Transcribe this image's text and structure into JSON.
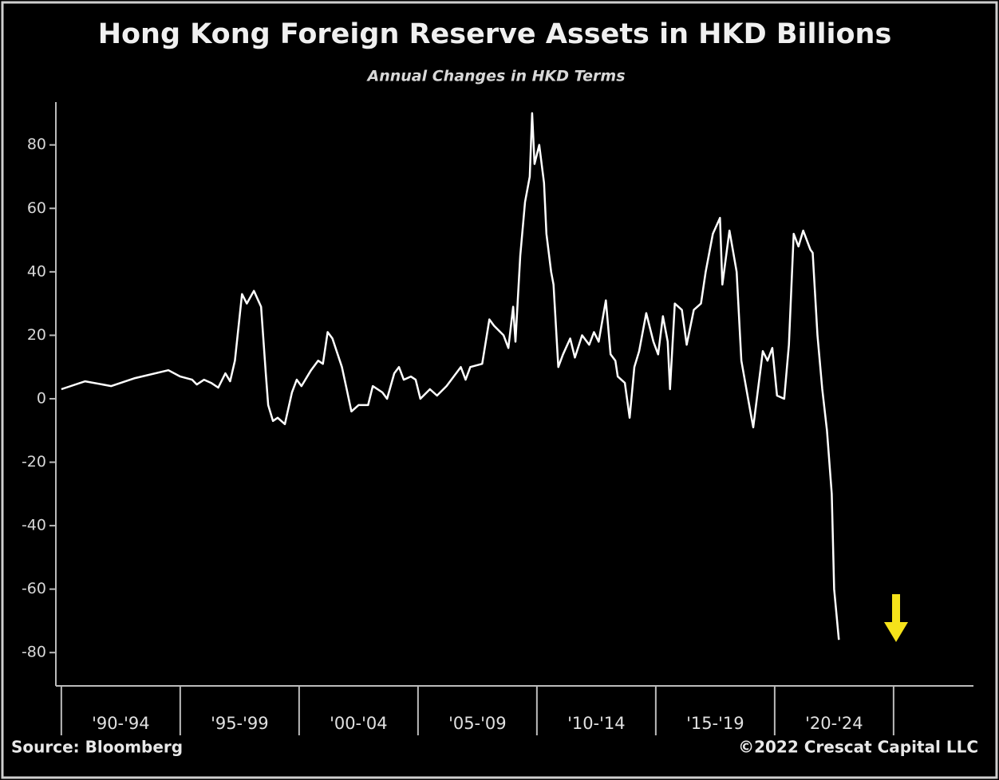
{
  "chart_data": {
    "type": "line",
    "title": "Hong Kong Foreign Reserve Assets in HKD Billions",
    "subtitle": "Annual Changes in HKD Terms",
    "source": "Source: Bloomberg",
    "credit": "©2022 Crescat Capital LLC",
    "categories": [
      "'90-'94",
      "'95-'99",
      "'00-'04",
      "'05-'09",
      "'10-'14",
      "'15-'19",
      "'20-'24"
    ],
    "xlim": [
      1989.77,
      2028.36
    ],
    "xticks": [
      1990,
      1995,
      2000,
      2005,
      2010,
      2015,
      2020,
      2025
    ],
    "ylim": [
      -90.5,
      93.5
    ],
    "yticks": [
      -80,
      -60,
      -40,
      -20,
      0,
      20,
      40,
      60,
      80
    ],
    "series": [
      {
        "color": "#ffffff",
        "x": [
          1990.0,
          1991.0,
          1992.1,
          1993.1,
          1994.5,
          1995.0,
          1995.5,
          1995.7,
          1996.0,
          1996.3,
          1996.6,
          1996.9,
          1997.1,
          1997.3,
          1997.6,
          1997.8,
          1998.1,
          1998.4,
          1998.6,
          1998.7,
          1998.9,
          1999.1,
          1999.4,
          1999.7,
          1999.9,
          2000.1,
          2000.5,
          2000.8,
          2001.0,
          2001.2,
          2001.4,
          2001.8,
          2002.0,
          2002.2,
          2002.5,
          2002.9,
          2003.1,
          2003.5,
          2003.7,
          2004.0,
          2004.2,
          2004.4,
          2004.7,
          2004.9,
          2005.1,
          2005.5,
          2005.8,
          2006.2,
          2006.5,
          2006.8,
          2007.0,
          2007.2,
          2007.7,
          2008.0,
          2008.2,
          2008.6,
          2008.8,
          2009.0,
          2009.1,
          2009.3,
          2009.5,
          2009.7,
          2009.8,
          2009.9,
          2010.1,
          2010.3,
          2010.4,
          2010.6,
          2010.7,
          2010.9,
          2011.1,
          2011.4,
          2011.6,
          2011.9,
          2012.2,
          2012.4,
          2012.6,
          2012.9,
          2013.1,
          2013.3,
          2013.4,
          2013.7,
          2013.9,
          2014.1,
          2014.3,
          2014.6,
          2014.9,
          2015.1,
          2015.3,
          2015.5,
          2015.6,
          2015.8,
          2016.1,
          2016.3,
          2016.6,
          2016.9,
          2017.1,
          2017.4,
          2017.7,
          2017.8,
          2018.1,
          2018.4,
          2018.6,
          2019.0,
          2019.1,
          2019.5,
          2019.7,
          2019.9,
          2020.1,
          2020.4,
          2020.6,
          2020.8,
          2021.0,
          2021.2,
          2021.5,
          2021.6,
          2021.8,
          2022.0,
          2022.2,
          2022.4,
          2022.5,
          2022.7
        ],
        "values": [
          3,
          5.5,
          4,
          6.5,
          9,
          7,
          6,
          4.5,
          6,
          5,
          3.5,
          8,
          5.5,
          12,
          33,
          30,
          34,
          29,
          8,
          -2,
          -7,
          -6,
          -8,
          2,
          6,
          4,
          9,
          12,
          11,
          21,
          19,
          10,
          3,
          -4,
          -2,
          -2,
          4,
          2,
          0,
          8,
          10,
          6,
          7,
          6,
          0,
          3,
          1,
          4,
          7,
          10,
          6,
          10,
          11,
          25,
          23,
          20,
          16,
          29,
          18,
          45,
          62,
          70,
          90,
          74,
          80,
          68,
          52,
          40,
          36,
          10,
          14,
          19,
          13,
          20,
          17,
          21,
          18,
          31,
          14,
          12,
          7,
          5,
          -6,
          10,
          15,
          27,
          18,
          14,
          26,
          18,
          3,
          30,
          28,
          17,
          28,
          30,
          40,
          52,
          57,
          36,
          53,
          40,
          12,
          -5,
          -9,
          15,
          12,
          16,
          1,
          0,
          17,
          52,
          48,
          53,
          47,
          46,
          20,
          3,
          -10,
          -30,
          -60,
          -76
        ]
      }
    ]
  }
}
